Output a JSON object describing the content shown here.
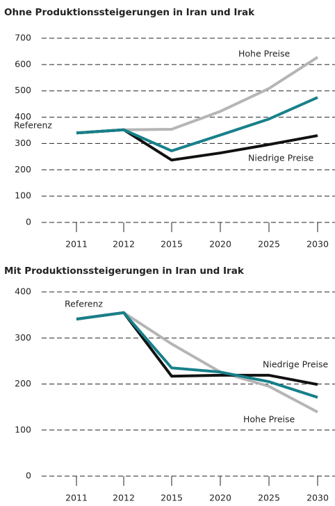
{
  "chart_data": [
    {
      "type": "line",
      "title": "Ohne Produktionssteigerungen in Iran und Irak",
      "categories": [
        "2011",
        "2012",
        "2015",
        "2020",
        "2025",
        "2030"
      ],
      "series": [
        {
          "name": "Hohe Preise",
          "color": "#b5b5b5",
          "values": [
            340,
            352,
            354,
            422,
            509,
            628
          ]
        },
        {
          "name": "Niedrige Preise",
          "color": "#111111",
          "values": [
            340,
            352,
            237,
            264,
            296,
            330
          ]
        },
        {
          "name": "Referenz",
          "color": "#17808a",
          "values": [
            340,
            352,
            272,
            332,
            393,
            475
          ]
        }
      ],
      "ylim": [
        0,
        700
      ],
      "yticks": [
        0,
        100,
        200,
        300,
        400,
        500,
        600,
        700
      ],
      "grid": true
    },
    {
      "type": "line",
      "title": "Mit Produktionssteigerungen in Iran und Irak",
      "categories": [
        "2011",
        "2012",
        "2015",
        "2020",
        "2025",
        "2030"
      ],
      "series": [
        {
          "name": "Hohe Preise",
          "color": "#b5b5b5",
          "values": [
            341,
            355,
            287,
            226,
            195,
            139
          ]
        },
        {
          "name": "Niedrige Preise",
          "color": "#111111",
          "values": [
            341,
            355,
            217,
            219,
            219,
            199
          ]
        },
        {
          "name": "Referenz",
          "color": "#17808a",
          "values": [
            341,
            355,
            235,
            226,
            205,
            171
          ]
        }
      ],
      "ylim": [
        0,
        400
      ],
      "yticks": [
        0,
        100,
        200,
        300,
        400
      ],
      "grid": true
    }
  ]
}
